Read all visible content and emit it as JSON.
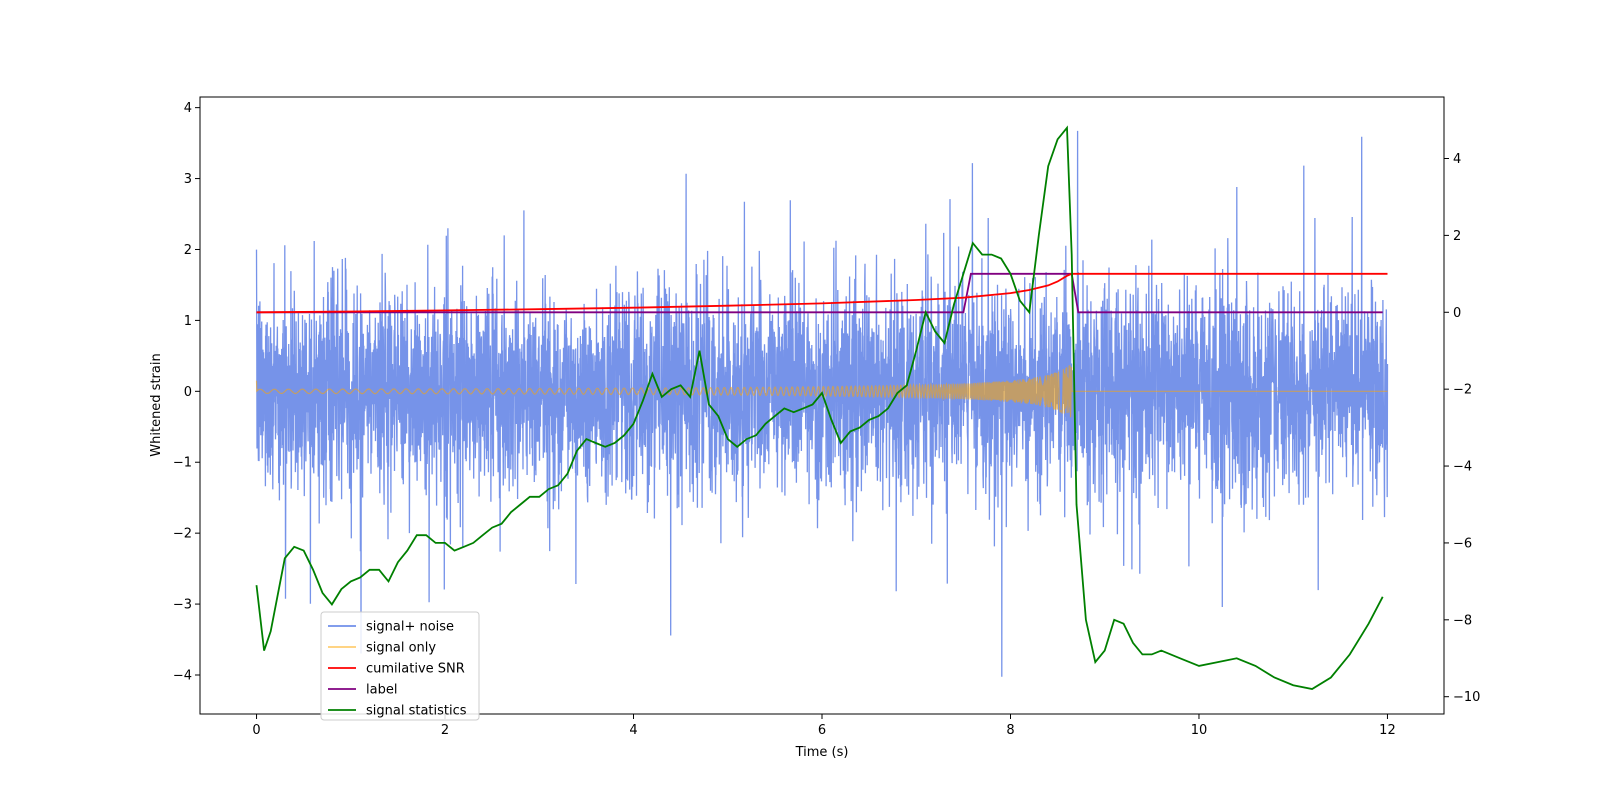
{
  "chart_data": {
    "type": "line",
    "title": "",
    "xlabel": "Time (s)",
    "ylabel": "Whitened strain",
    "y2label": "",
    "xlim": [
      -0.6,
      12.6
    ],
    "ylim": [
      -4.55,
      4.15
    ],
    "y2lim": [
      -10.45,
      5.6
    ],
    "xticks": [
      0,
      2,
      4,
      6,
      8,
      10,
      12
    ],
    "yticks": [
      -4,
      -3,
      -2,
      -1,
      0,
      1,
      2,
      3,
      4
    ],
    "y2ticks": [
      -10,
      -8,
      -6,
      -4,
      -2,
      0,
      2,
      4
    ],
    "grid": false,
    "legend_position": "lower-left",
    "merger_time": 8.65,
    "noise": {
      "t_start": 0,
      "t_end": 12,
      "typical_amplitude": 2.2,
      "peak_amplitude": 3.8,
      "min_value": -4.15
    },
    "series": [
      {
        "name": "signal+ noise",
        "axis": "left",
        "color": "#4169e1"
      },
      {
        "name": "signal only",
        "axis": "left",
        "color": "#ffa500"
      },
      {
        "name": "cumilative SNR",
        "axis": "right",
        "color": "#ff0000",
        "x": [
          0,
          1,
          2,
          3,
          4,
          5,
          6,
          7,
          7.5,
          8,
          8.2,
          8.4,
          8.5,
          8.6,
          8.65,
          9,
          10,
          11,
          12
        ],
        "y": [
          0,
          0.02,
          0.05,
          0.08,
          0.12,
          0.17,
          0.23,
          0.32,
          0.38,
          0.5,
          0.58,
          0.7,
          0.8,
          0.95,
          1.0,
          1.0,
          1.0,
          1.0,
          1.0
        ]
      },
      {
        "name": "label",
        "axis": "right",
        "color": "#800080",
        "x": [
          0,
          7.5,
          7.58,
          8.65,
          8.72,
          11.95
        ],
        "y": [
          0,
          0,
          1,
          1,
          0,
          0
        ]
      },
      {
        "name": "signal statistics",
        "axis": "right",
        "color": "#008000",
        "x": [
          0,
          0.08,
          0.15,
          0.3,
          0.4,
          0.5,
          0.6,
          0.7,
          0.8,
          0.9,
          1.0,
          1.1,
          1.2,
          1.3,
          1.4,
          1.5,
          1.6,
          1.7,
          1.8,
          1.9,
          2.0,
          2.1,
          2.2,
          2.3,
          2.4,
          2.5,
          2.6,
          2.7,
          2.8,
          2.9,
          3.0,
          3.1,
          3.2,
          3.3,
          3.4,
          3.5,
          3.6,
          3.7,
          3.8,
          3.9,
          4.0,
          4.1,
          4.2,
          4.3,
          4.4,
          4.5,
          4.6,
          4.7,
          4.8,
          4.9,
          5.0,
          5.1,
          5.2,
          5.3,
          5.4,
          5.5,
          5.6,
          5.7,
          5.8,
          5.9,
          6.0,
          6.1,
          6.2,
          6.3,
          6.4,
          6.5,
          6.6,
          6.7,
          6.8,
          6.9,
          7.0,
          7.1,
          7.2,
          7.3,
          7.4,
          7.5,
          7.6,
          7.7,
          7.8,
          7.9,
          8.0,
          8.1,
          8.2,
          8.3,
          8.4,
          8.5,
          8.6,
          8.65,
          8.7,
          8.8,
          8.9,
          9.0,
          9.1,
          9.2,
          9.3,
          9.4,
          9.5,
          9.6,
          9.8,
          10.0,
          10.2,
          10.4,
          10.6,
          10.8,
          11.0,
          11.2,
          11.4,
          11.6,
          11.8,
          11.95
        ],
        "y": [
          -7.1,
          -8.8,
          -8.3,
          -6.4,
          -6.1,
          -6.2,
          -6.7,
          -7.3,
          -7.6,
          -7.2,
          -7.0,
          -6.9,
          -6.7,
          -6.7,
          -7.0,
          -6.5,
          -6.2,
          -5.8,
          -5.8,
          -6.0,
          -6.0,
          -6.2,
          -6.1,
          -6.0,
          -5.8,
          -5.6,
          -5.5,
          -5.2,
          -5.0,
          -4.8,
          -4.8,
          -4.6,
          -4.5,
          -4.2,
          -3.6,
          -3.3,
          -3.4,
          -3.5,
          -3.4,
          -3.2,
          -2.9,
          -2.3,
          -1.6,
          -2.2,
          -2.0,
          -1.9,
          -2.2,
          -1.0,
          -2.4,
          -2.7,
          -3.3,
          -3.5,
          -3.3,
          -3.2,
          -2.9,
          -2.7,
          -2.5,
          -2.6,
          -2.5,
          -2.4,
          -2.1,
          -2.8,
          -3.4,
          -3.1,
          -3.0,
          -2.8,
          -2.7,
          -2.5,
          -2.1,
          -1.9,
          -1.0,
          0.0,
          -0.5,
          -0.8,
          0.2,
          1.0,
          1.8,
          1.5,
          1.5,
          1.4,
          1.0,
          0.3,
          0.0,
          2.0,
          3.8,
          4.5,
          4.8,
          1.5,
          -5.0,
          -8.0,
          -9.1,
          -8.8,
          -8.0,
          -8.1,
          -8.6,
          -8.9,
          -8.9,
          -8.8,
          -9.0,
          -9.2,
          -9.1,
          -9.0,
          -9.2,
          -9.5,
          -9.7,
          -9.8,
          -9.5,
          -8.9,
          -8.1,
          -7.4
        ]
      }
    ]
  }
}
